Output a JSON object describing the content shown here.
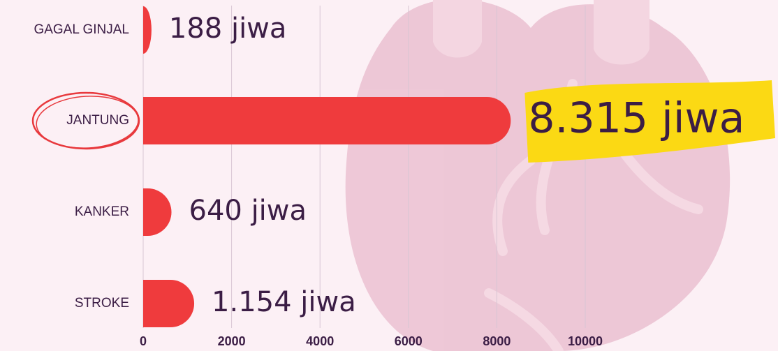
{
  "chart_data": {
    "type": "bar",
    "orientation": "horizontal",
    "categories": [
      "GAGAL GINJAL",
      "JANTUNG",
      "KANKER",
      "STROKE"
    ],
    "values": [
      188,
      8315,
      640,
      1154
    ],
    "value_labels": [
      "188 jiwa",
      "8.315 jiwa",
      "640 jiwa",
      "1.154 jiwa"
    ],
    "color": "#ef3b3d",
    "xlim": [
      0,
      10000
    ],
    "xticks": [
      0,
      2000,
      4000,
      6000,
      8000,
      10000
    ],
    "grid": true
  }
}
